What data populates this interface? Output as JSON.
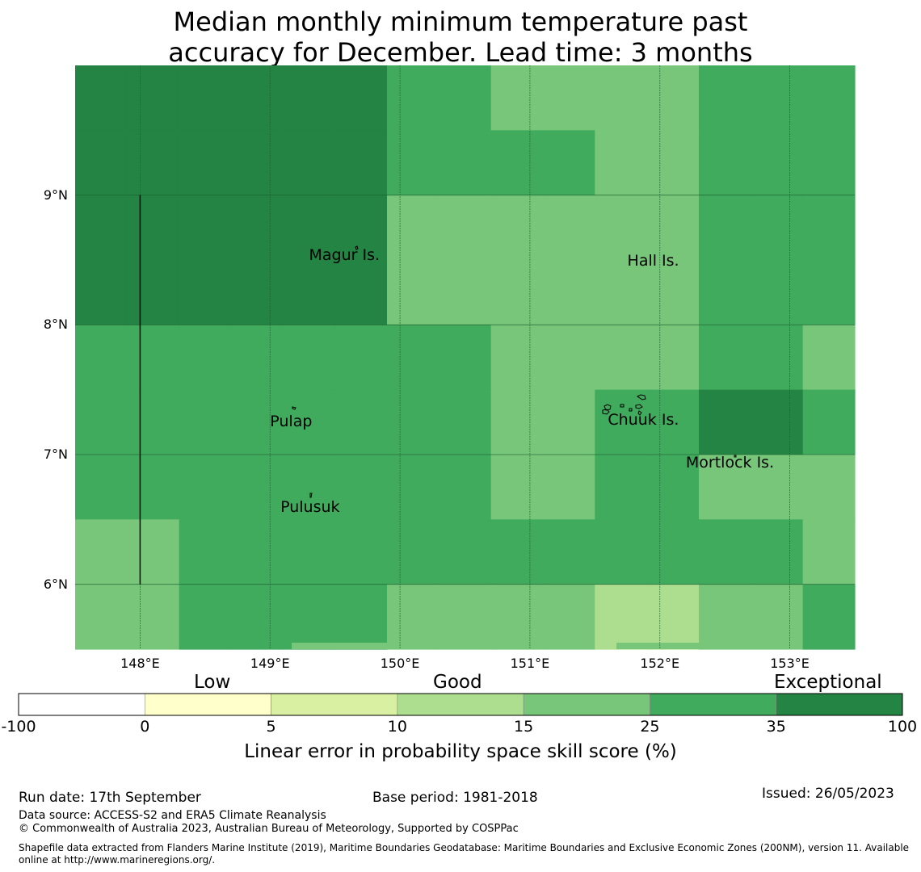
{
  "title": {
    "line1": "Median monthly minimum temperature past",
    "line2": "accuracy for December. Lead time: 3 months"
  },
  "map": {
    "lon_range": [
      147.5,
      153.5
    ],
    "lat_range": [
      5.5,
      10.0
    ],
    "lon_ticks": [
      {
        "value": 148,
        "label": "148°E"
      },
      {
        "value": 149,
        "label": "149°E"
      },
      {
        "value": 150,
        "label": "150°E"
      },
      {
        "value": 151,
        "label": "151°E"
      },
      {
        "value": 152,
        "label": "152°E"
      },
      {
        "value": 153,
        "label": "153°E"
      }
    ],
    "lat_ticks": [
      {
        "value": 9,
        "label": "9°N"
      },
      {
        "value": 8,
        "label": "8°N"
      },
      {
        "value": 7,
        "label": "7°N"
      },
      {
        "value": 6,
        "label": "6°N"
      }
    ],
    "place_labels": [
      {
        "name": "Magur Is.",
        "lon": 149.3,
        "lat": 8.53
      },
      {
        "name": "Hall Is.",
        "lon": 151.75,
        "lat": 8.49
      },
      {
        "name": "Pulap",
        "lon": 149.0,
        "lat": 7.25
      },
      {
        "name": "Chuuk Is.",
        "lon": 151.6,
        "lat": 7.26
      },
      {
        "name": "Mortlock Is.",
        "lon": 152.2,
        "lat": 6.93
      },
      {
        "name": "Pulusuk",
        "lon": 149.08,
        "lat": 6.59
      }
    ],
    "grid_cells_skill_pct": [
      [
        100,
        100,
        100,
        100,
        100,
        100,
        35,
        35,
        25,
        25,
        25,
        25,
        35,
        35,
        35
      ],
      [
        100,
        100,
        100,
        100,
        100,
        100,
        35,
        35,
        35,
        35,
        25,
        25,
        35,
        35,
        35
      ],
      [
        100,
        100,
        100,
        100,
        100,
        100,
        25,
        25,
        25,
        25,
        25,
        25,
        35,
        35,
        35
      ],
      [
        100,
        100,
        100,
        100,
        100,
        100,
        25,
        25,
        25,
        25,
        25,
        25,
        35,
        35,
        35
      ],
      [
        35,
        35,
        35,
        35,
        35,
        35,
        35,
        35,
        25,
        25,
        25,
        25,
        35,
        35,
        25
      ],
      [
        35,
        35,
        35,
        35,
        35,
        35,
        35,
        35,
        25,
        25,
        35,
        35,
        100,
        100,
        35
      ],
      [
        35,
        35,
        35,
        35,
        35,
        35,
        35,
        35,
        25,
        25,
        35,
        35,
        25,
        25,
        25
      ],
      [
        25,
        25,
        35,
        35,
        35,
        35,
        35,
        35,
        35,
        35,
        35,
        35,
        35,
        35,
        25
      ],
      [
        25,
        25,
        35,
        35,
        35,
        35,
        25,
        25,
        25,
        25,
        15,
        15,
        25,
        25,
        35
      ]
    ],
    "colors": {
      "gridline": "#1d5f33",
      "coast": "#000000"
    }
  },
  "colorbar": {
    "bins": [
      {
        "from": -100,
        "to": 0,
        "color": "#ffffff"
      },
      {
        "from": 0,
        "to": 5,
        "color": "#ffffcc"
      },
      {
        "from": 5,
        "to": 10,
        "color": "#d9f0a3"
      },
      {
        "from": 10,
        "to": 15,
        "color": "#addd8e"
      },
      {
        "from": 15,
        "to": 25,
        "color": "#78c679"
      },
      {
        "from": 25,
        "to": 35,
        "color": "#41ab5d"
      },
      {
        "from": 35,
        "to": 100,
        "color": "#238443"
      }
    ],
    "tick_labels": [
      "-100",
      "0",
      "5",
      "10",
      "15",
      "25",
      "35",
      "100"
    ],
    "category_labels": {
      "low": "Low",
      "good": "Good",
      "exceptional": "Exceptional"
    },
    "title": "Linear error in probability space skill score (%)"
  },
  "footer": {
    "run_date": "Run date: 17th September",
    "base_period": "Base period: 1981-2018",
    "issued": "Issued: 26/05/2023",
    "data_source": "Data source: ACCESS-S2 and ERA5 Climate Reanalysis",
    "copyright": "© Commonwealth of Australia 2023, Australian Bureau of Meteorology, Supported by COSPPac",
    "shapefile": "Shapefile data extracted from Flanders Marine Institute (2019), Maritime Boundaries Geodatabase: Maritime Boundaries and Exclusive Economic Zones (200NM), version 11. Available online at http://www.marineregions.org/."
  }
}
